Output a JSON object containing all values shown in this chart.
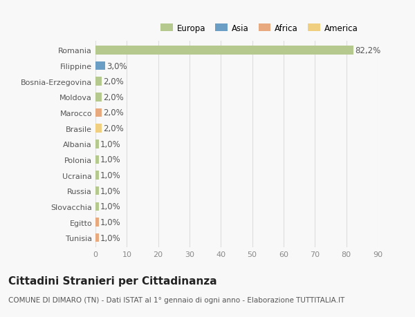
{
  "categories": [
    "Romania",
    "Filippine",
    "Bosnia-Erzegovina",
    "Moldova",
    "Marocco",
    "Brasile",
    "Albania",
    "Polonia",
    "Ucraina",
    "Russia",
    "Slovacchia",
    "Egitto",
    "Tunisia"
  ],
  "values": [
    82.2,
    3.0,
    2.0,
    2.0,
    2.0,
    2.0,
    1.0,
    1.0,
    1.0,
    1.0,
    1.0,
    1.0,
    1.0
  ],
  "labels": [
    "82,2%",
    "3,0%",
    "2,0%",
    "2,0%",
    "2,0%",
    "2,0%",
    "1,0%",
    "1,0%",
    "1,0%",
    "1,0%",
    "1,0%",
    "1,0%",
    "1,0%"
  ],
  "bar_colors": [
    "#b5c98e",
    "#6a9ec5",
    "#b5c98e",
    "#b5c98e",
    "#e8a97e",
    "#f0d080",
    "#b5c98e",
    "#b5c98e",
    "#b5c98e",
    "#b5c98e",
    "#b5c98e",
    "#e8a97e",
    "#e8a97e"
  ],
  "legend_labels": [
    "Europa",
    "Asia",
    "Africa",
    "America"
  ],
  "legend_colors": [
    "#b5c98e",
    "#6a9ec5",
    "#e8a97e",
    "#f0d080"
  ],
  "title": "Cittadini Stranieri per Cittadinanza",
  "subtitle": "COMUNE DI DIMARO (TN) - Dati ISTAT al 1° gennaio di ogni anno - Elaborazione TUTTITALIA.IT",
  "xlim": [
    0,
    90
  ],
  "xticks": [
    0,
    10,
    20,
    30,
    40,
    50,
    60,
    70,
    80,
    90
  ],
  "background_color": "#f8f8f8",
  "grid_color": "#dddddd",
  "bar_height": 0.55,
  "label_fontsize": 8.5,
  "tick_fontsize": 8,
  "title_fontsize": 11,
  "subtitle_fontsize": 7.5,
  "figsize": [
    6.0,
    4.6
  ],
  "dpi": 100
}
